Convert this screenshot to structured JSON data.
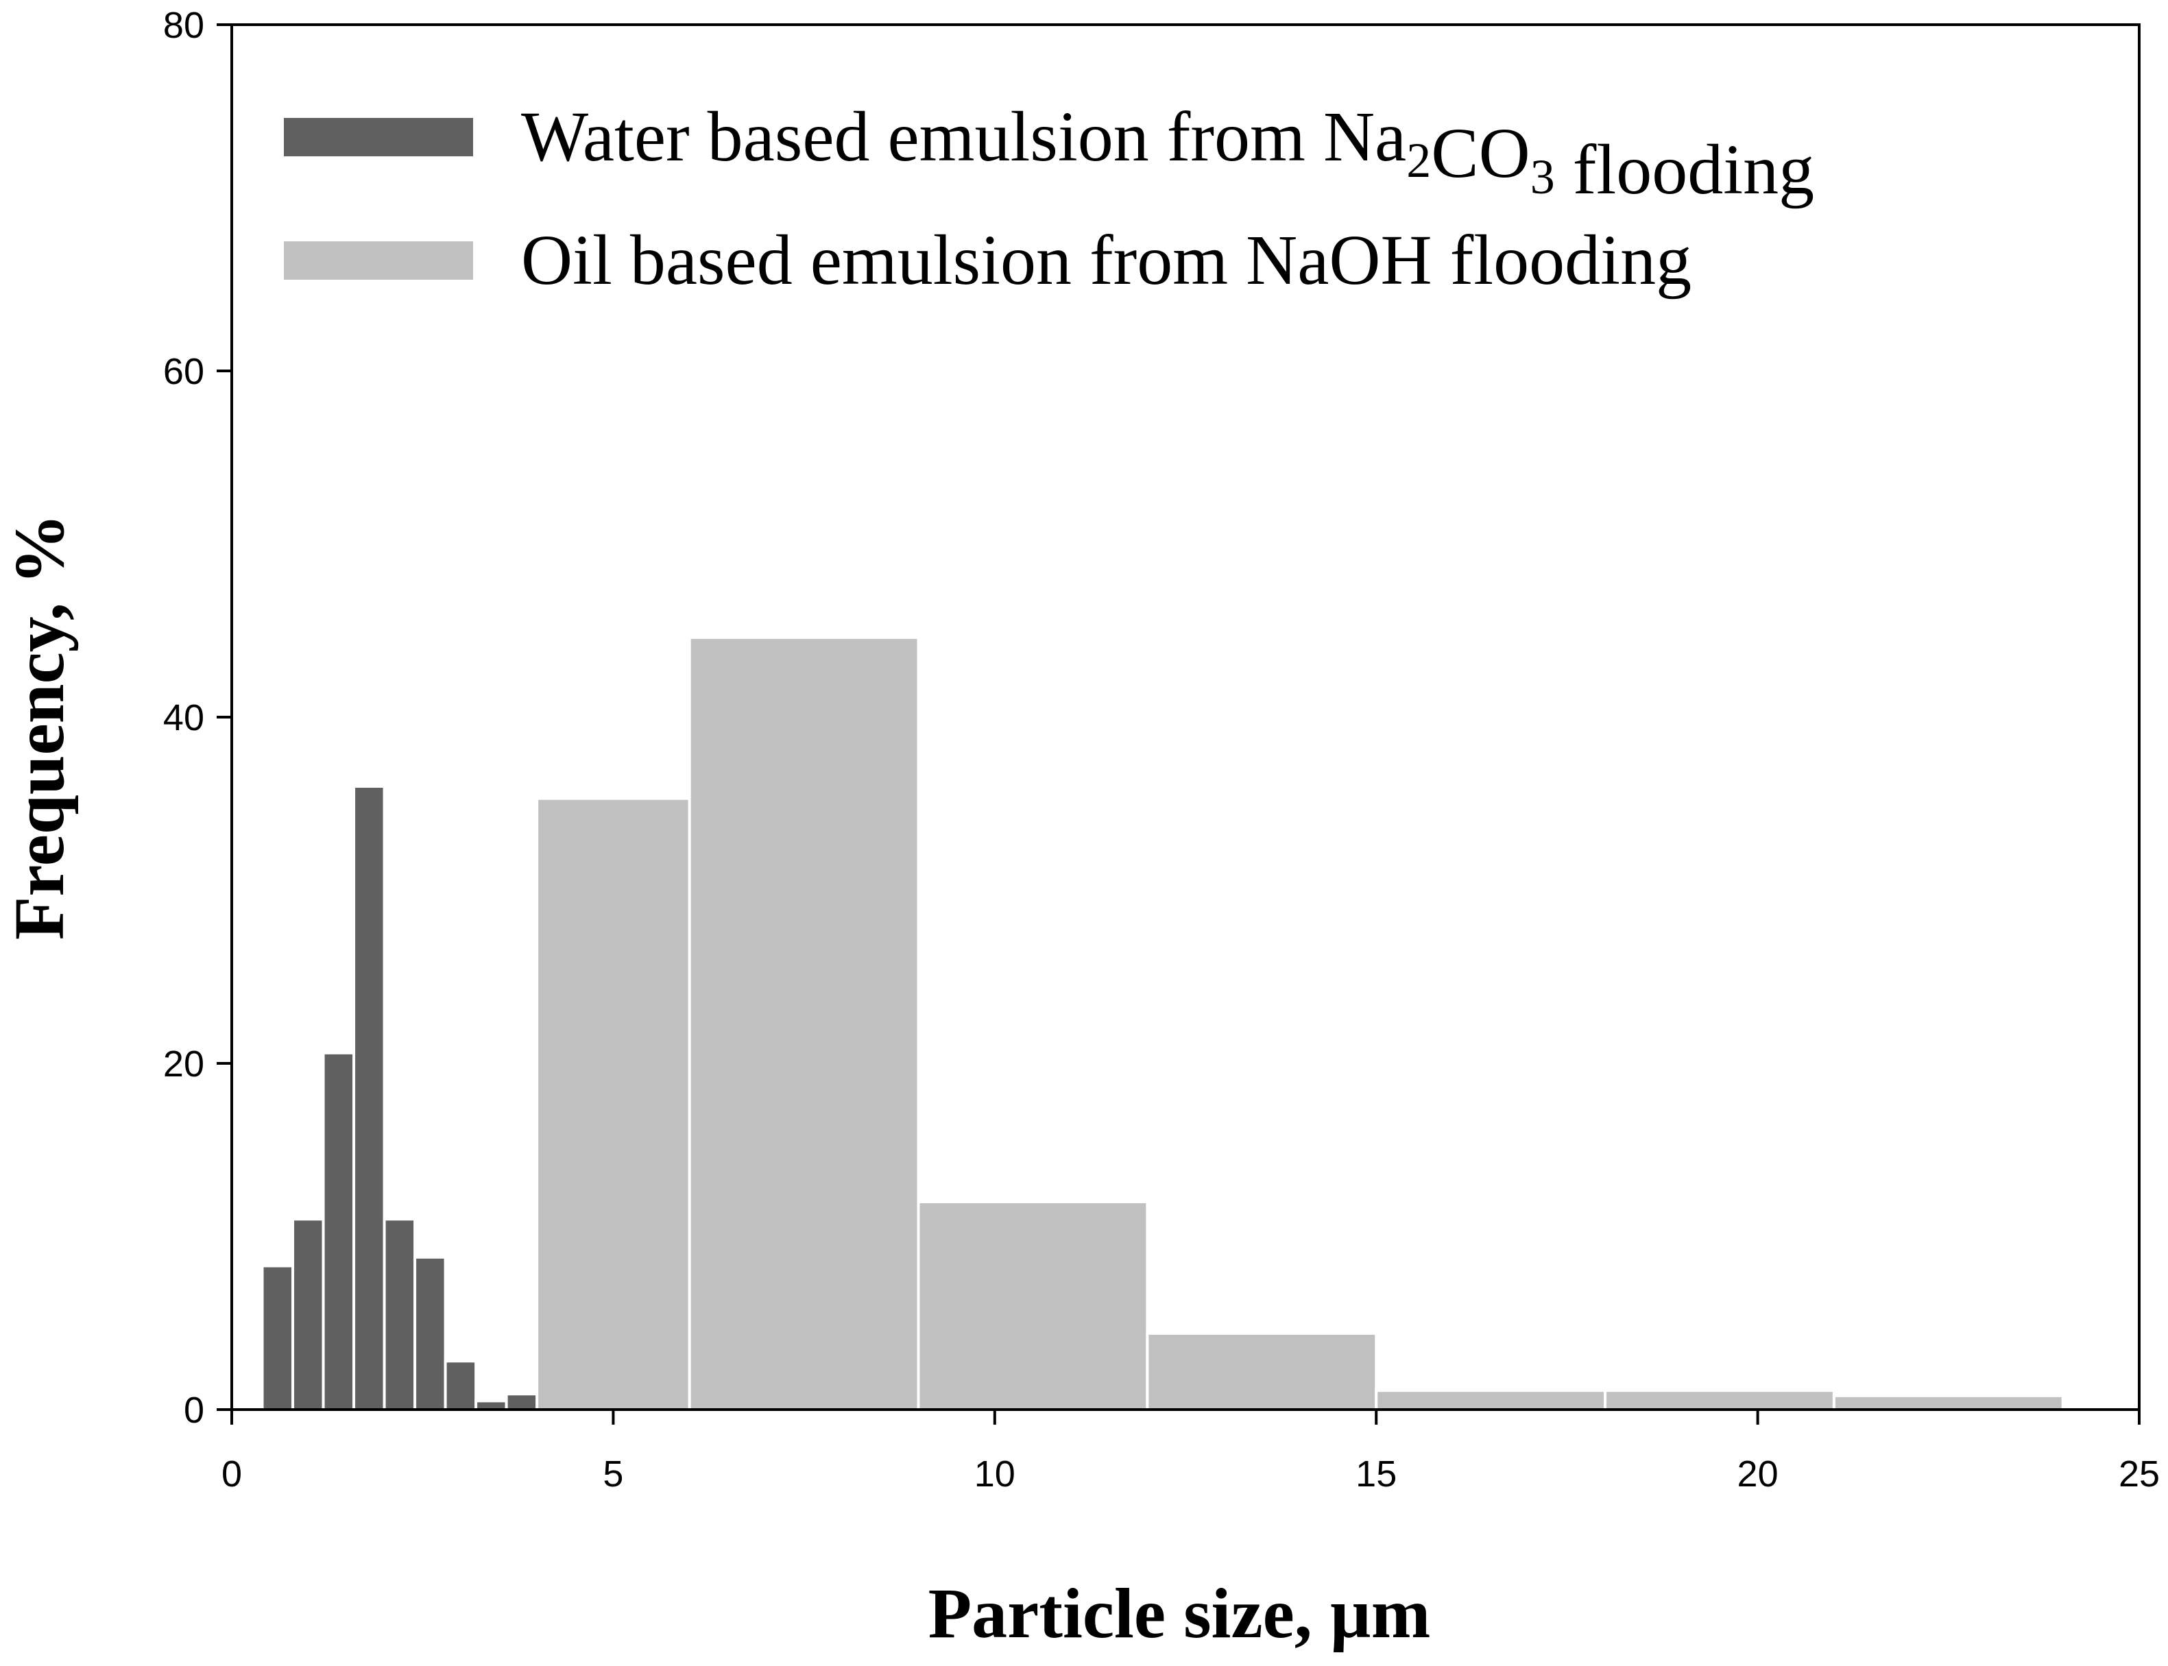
{
  "chart_data": {
    "type": "bar",
    "xlabel": "Particle size, µm",
    "ylabel": "Frequency, %",
    "xlim": [
      0,
      25
    ],
    "ylim": [
      0,
      80
    ],
    "xticks": [
      0,
      5,
      10,
      15,
      20,
      25
    ],
    "yticks": [
      0,
      20,
      40,
      60,
      80
    ],
    "grid": false,
    "legend_position": "top-left",
    "series": [
      {
        "name": "Water based emulsion from Na2CO3 flooding",
        "legend_parts": [
          {
            "text": "Water based emulsion from Na",
            "sub": false
          },
          {
            "text": "2",
            "sub": true
          },
          {
            "text": "CO",
            "sub": false
          },
          {
            "text": "3",
            "sub": true
          },
          {
            "text": " flooding",
            "sub": false
          }
        ],
        "color": "#606060",
        "bins": [
          {
            "x0": 0.4,
            "x1": 0.8,
            "value": 8.3
          },
          {
            "x0": 0.8,
            "x1": 1.2,
            "value": 11.0
          },
          {
            "x0": 1.2,
            "x1": 1.6,
            "value": 20.6
          },
          {
            "x0": 1.6,
            "x1": 2.0,
            "value": 36.0
          },
          {
            "x0": 2.0,
            "x1": 2.4,
            "value": 11.0
          },
          {
            "x0": 2.4,
            "x1": 2.8,
            "value": 8.8
          },
          {
            "x0": 2.8,
            "x1": 3.2,
            "value": 2.8
          },
          {
            "x0": 3.2,
            "x1": 3.6,
            "value": 0.5
          },
          {
            "x0": 3.6,
            "x1": 4.0,
            "value": 0.9
          }
        ]
      },
      {
        "name": "Oil based emulsion from NaOH flooding",
        "legend_parts": [
          {
            "text": "Oil based emulsion from NaOH flooding",
            "sub": false
          }
        ],
        "color": "#c0c0c0",
        "bins": [
          {
            "x0": 4.0,
            "x1": 6.0,
            "value": 35.3
          },
          {
            "x0": 6.0,
            "x1": 9.0,
            "value": 44.6
          },
          {
            "x0": 9.0,
            "x1": 12.0,
            "value": 12.0
          },
          {
            "x0": 12.0,
            "x1": 15.0,
            "value": 4.4
          },
          {
            "x0": 15.0,
            "x1": 18.0,
            "value": 1.1
          },
          {
            "x0": 18.0,
            "x1": 21.0,
            "value": 1.1
          },
          {
            "x0": 21.0,
            "x1": 24.0,
            "value": 0.8
          }
        ]
      }
    ]
  }
}
